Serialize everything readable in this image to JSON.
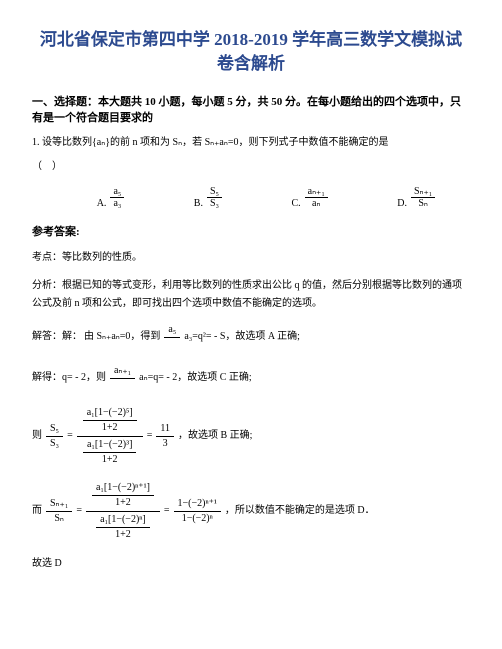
{
  "title": "河北省保定市第四中学 2018-2019 学年高三数学文模拟试卷含解析",
  "section_header": "一、选择题：本大题共 10 小题，每小题 5 分，共 50 分。在每小题给出的四个选项中，只有是一个符合题目要求的",
  "question": "1. 设等比数列{aₙ}的前 n 项和为 Sₙ，若 Sₙ₊aₙ=0，则下列式子中数值不能确定的是",
  "paren": "（　）",
  "option_a_label": "A.",
  "option_b_label": "B.",
  "option_c_label": "C.",
  "option_d_label": "D.",
  "frac_a_num": "a₅",
  "frac_a_den": "a₃",
  "frac_b_num": "S₅",
  "frac_b_den": "S₃",
  "frac_c_num": "aₙ₊₁",
  "frac_c_den": "aₙ",
  "frac_d_num": "Sₙ₊₁",
  "frac_d_den": "Sₙ",
  "answer_label": "参考答案:",
  "analysis_point": "考点：等比数列的性质。",
  "analysis_text": "分析：根据已知的等式变形，利用等比数列的性质求出公比 q 的值，然后分别根据等比数列的通项公式及前 n 项和公式，即可找出四个选项中数值不能确定的选项。",
  "solve_label": "解答：解：",
  "solve_1a": "由 Sₙ₊aₙ=0，得到",
  "solve_1_frac_num": "a₅",
  "solve_1b": "a₃=q²= - S，故选项 A 正确;",
  "solve_2a": "解得：q= - 2，则",
  "solve_2_frac_num": "aₙ₊₁",
  "solve_2b": "aₙ=q= - 2，故选项 C 正确;",
  "solve_3_prefix": "则",
  "solve_3_lhs_num": "S₅",
  "solve_3_lhs_den": "S₃",
  "solve_3_top_num": "a₁[1−(−2)⁵]",
  "solve_3_top_den": "1+2",
  "solve_3_bot_num": "a₁[1−(−2)³]",
  "solve_3_bot_den": "1+2",
  "solve_3_result_num": "11",
  "solve_3_result_den": "3",
  "solve_3_suffix": "，故选项 B 正确;",
  "solve_4_prefix": "而",
  "solve_4_lhs_num": "Sₙ₊₁",
  "solve_4_lhs_den": "Sₙ",
  "solve_4_top_num": "a₁[1−(−2)ⁿ⁺¹]",
  "solve_4_top_den": "1+2",
  "solve_4_bot_num": "a₁[1−(−2)ⁿ]",
  "solve_4_bot_den": "1+2",
  "solve_4_result_num": "1−(−2)ⁿ⁺¹",
  "solve_4_result_den": "1−(−2)ⁿ",
  "solve_4_suffix": "，所以数值不能确定的是选项 D．",
  "conclusion": "故选 D"
}
